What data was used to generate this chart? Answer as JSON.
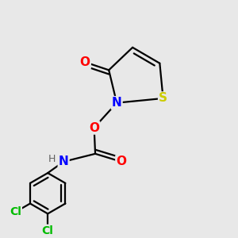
{
  "background_color": "#e8e8e8",
  "atom_colors": {
    "O": "#ff0000",
    "N": "#0000ff",
    "S": "#cccc00",
    "Cl": "#00bb00",
    "C": "#000000",
    "H": "#606060"
  },
  "bond_color": "#000000",
  "bond_width": 1.6,
  "font_size_atoms": 11,
  "font_size_h": 9,
  "figsize": [
    3.0,
    3.0
  ],
  "dpi": 100
}
